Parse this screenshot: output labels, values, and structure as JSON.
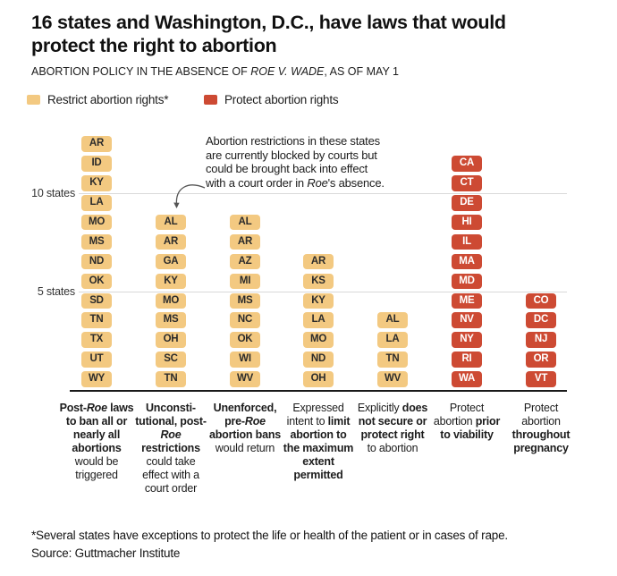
{
  "title": {
    "full": "16 states and Washington, D.C., have laws that would protect the right to abortion",
    "lines": [
      "16 states and Washington, D.C., have laws that would",
      "protect the right to abortion"
    ]
  },
  "subtitle": {
    "pre": "ABORTION POLICY IN THE ABSENCE OF ",
    "italic": "ROE V. WADE",
    "post": ", AS OF MAY 1"
  },
  "legend": [
    {
      "id": "restrict",
      "label": "Restrict abortion rights*",
      "color": "#f3c981"
    },
    {
      "id": "protect",
      "label": "Protect abortion rights",
      "color": "#cd4a33"
    }
  ],
  "colors": {
    "restrict": "#f3c981",
    "protect": "#cd4a33",
    "restrict_text": "#2b2b2b",
    "protect_text": "#ffffff",
    "grid": "#d9d9d9",
    "axis": "#1a1a1a"
  },
  "annotation": {
    "lines": [
      [
        {
          "text": "Abortion restrictions in these states"
        }
      ],
      [
        {
          "text": "are currently blocked by courts but"
        }
      ],
      [
        {
          "text": "could be brought back into effect"
        }
      ],
      [
        {
          "text": "with a court order in "
        },
        {
          "text": "Roe",
          "italic": true
        },
        {
          "text": "'s absence."
        }
      ]
    ]
  },
  "chart_data": {
    "type": "bar",
    "unit": "states",
    "ylim": [
      0,
      13
    ],
    "grid": "on",
    "yticks": [
      {
        "value": 10,
        "label": "10 states"
      },
      {
        "value": 5,
        "label": "5 states"
      }
    ],
    "columns": [
      {
        "id": "post-roe-trigger-bans",
        "group": "restrict",
        "count": 13,
        "states": [
          "AR",
          "ID",
          "KY",
          "LA",
          "MO",
          "MS",
          "ND",
          "OK",
          "SD",
          "TN",
          "TX",
          "UT",
          "WY"
        ],
        "label_segments": [
          {
            "text": "Post-",
            "bold": true
          },
          {
            "text": "Roe",
            "bold": true,
            "italic": true
          },
          {
            "text": " laws to ban all or nearly all abortions ",
            "bold": true
          },
          {
            "text": "would be triggered",
            "bold": false
          }
        ]
      },
      {
        "id": "unconstitutional-post-roe-restrictions",
        "group": "restrict",
        "count": 9,
        "states": [
          "AL",
          "AR",
          "GA",
          "KY",
          "MO",
          "MS",
          "OH",
          "SC",
          "TN"
        ],
        "label_segments": [
          {
            "text": "Unconsti­tutional, post-",
            "bold": true
          },
          {
            "text": "Roe",
            "bold": true,
            "italic": true
          },
          {
            "text": " restrictions ",
            "bold": true
          },
          {
            "text": "could take effect with a court order",
            "bold": false
          }
        ]
      },
      {
        "id": "unenforced-pre-roe-bans",
        "group": "restrict",
        "count": 9,
        "states": [
          "AL",
          "AR",
          "AZ",
          "MI",
          "MS",
          "NC",
          "OK",
          "WI",
          "WV"
        ],
        "label_segments": [
          {
            "text": "Unenforced, pre-",
            "bold": true
          },
          {
            "text": "Roe",
            "bold": true,
            "italic": true
          },
          {
            "text": " abortion bans ",
            "bold": true
          },
          {
            "text": "would return",
            "bold": false
          }
        ]
      },
      {
        "id": "expressed-intent-to-limit",
        "group": "restrict",
        "count": 7,
        "states": [
          "AR",
          "KS",
          "KY",
          "LA",
          "MO",
          "ND",
          "OH"
        ],
        "label_segments": [
          {
            "text": "Expressed intent to ",
            "bold": false
          },
          {
            "text": "limit abortion to the maximum extent permitted",
            "bold": true
          }
        ]
      },
      {
        "id": "explicitly-does-not-protect",
        "group": "restrict",
        "count": 4,
        "states": [
          "AL",
          "LA",
          "TN",
          "WV"
        ],
        "label_segments": [
          {
            "text": "Explicitly ",
            "bold": false
          },
          {
            "text": "does not secure or protect right ",
            "bold": true
          },
          {
            "text": "to abortion",
            "bold": false
          }
        ]
      },
      {
        "id": "protect-prior-to-viability",
        "group": "protect",
        "count": 12,
        "states": [
          "CA",
          "CT",
          "DE",
          "HI",
          "IL",
          "MA",
          "MD",
          "ME",
          "NV",
          "NY",
          "RI",
          "WA"
        ],
        "label_segments": [
          {
            "text": "Protect abortion ",
            "bold": false
          },
          {
            "text": "prior to viability",
            "bold": true
          }
        ]
      },
      {
        "id": "protect-throughout-pregnancy",
        "group": "protect",
        "count": 5,
        "states": [
          "CO",
          "DC",
          "NJ",
          "OR",
          "VT"
        ],
        "label_segments": [
          {
            "text": "Protect abortion ",
            "bold": false
          },
          {
            "text": "throughout pregnancy",
            "bold": true
          }
        ]
      }
    ]
  },
  "footnote": "*Several states have exceptions to protect the life or health of the patient or in cases of rape.",
  "source": "Source: Guttmacher Institute"
}
